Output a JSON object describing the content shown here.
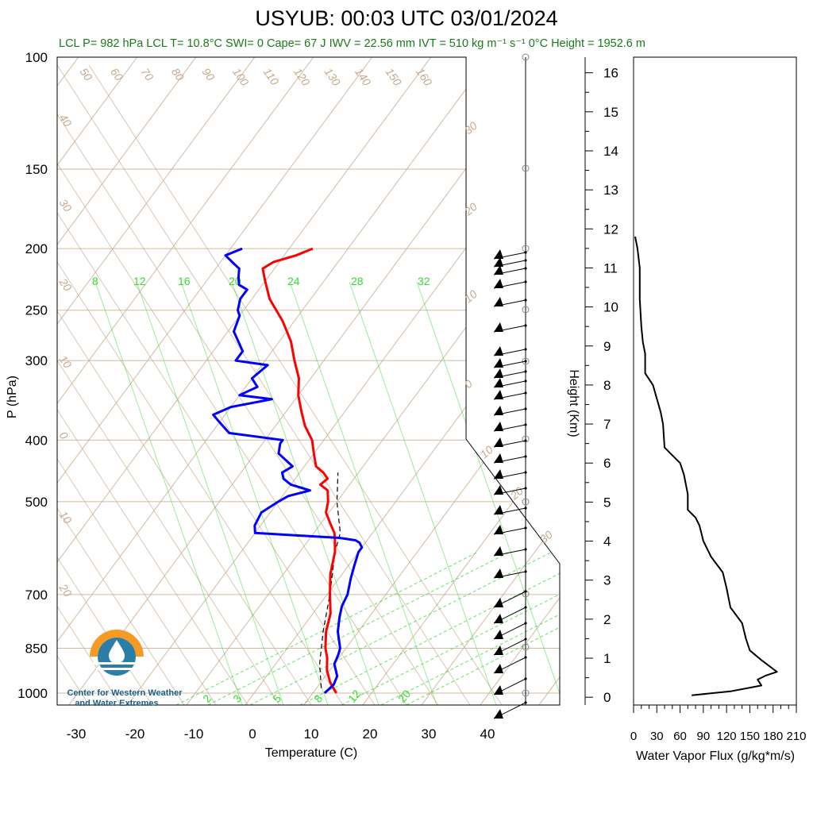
{
  "title": "USYUB: 00:03 UTC 03/01/2024",
  "stats_line": "LCL P= 982 hPa  LCL T= 10.8°C  SWI= 0  Cape= 67 J  IWV = 22.56 mm  IVT = 510 kg m⁻¹ s⁻¹  0°C Height = 1952.6 m",
  "logo": {
    "line1": "Center for Western Weather",
    "line2": "and Water Extremes"
  },
  "colors": {
    "temperature": "#ff0000",
    "dewpoint": "#0000ff",
    "dry_adiabat": "#c8a88a",
    "mixing_ratio": "#33dd33",
    "flux": "#000000",
    "stats_text": "#1a7a1a"
  },
  "chart_data": [
    {
      "type": "line",
      "name": "skew-t",
      "xlabel": "Temperature (C)",
      "ylabel": "P (hPa)",
      "xlim": [
        -34,
        49
      ],
      "ylim": [
        1050,
        100
      ],
      "y_scale": "log",
      "x_ticks": [
        -30,
        -20,
        -10,
        0,
        10,
        20,
        30,
        40
      ],
      "y_ticks": [
        100,
        150,
        200,
        250,
        300,
        400,
        500,
        700,
        850,
        1000
      ],
      "mixing_ratio_labels_upper": [
        "8",
        "12",
        "16",
        "20",
        "24",
        "28",
        "32"
      ],
      "mixing_ratio_labels_lower": [
        "2",
        "3",
        "5",
        "8",
        "12",
        "20"
      ],
      "dry_adiabat_labels": [
        "50",
        "60",
        "70",
        "80",
        "90",
        "100",
        "110",
        "120",
        "130",
        "140",
        "150",
        "160"
      ],
      "isotherm_labels_left": [
        "40",
        "30",
        "20",
        "10",
        "0",
        "10",
        "20"
      ],
      "isotherm_labels_right": [
        "30",
        "20",
        "10",
        "0",
        "10",
        "20",
        "30"
      ],
      "series": [
        {
          "name": "Temperature",
          "p": [
            1000,
            960,
            920,
            880,
            850,
            800,
            750,
            700,
            650,
            600,
            575,
            560,
            540,
            520,
            510,
            500,
            480,
            470,
            460,
            450,
            440,
            420,
            400,
            380,
            360,
            340,
            320,
            300,
            280,
            260,
            240,
            225,
            215,
            210,
            205,
            200
          ],
          "t": [
            14,
            11.5,
            9.5,
            8,
            6.5,
            4.5,
            3,
            0.5,
            -2,
            -4,
            -5.5,
            -6.5,
            -8.5,
            -10.5,
            -11,
            -11.5,
            -13,
            -15,
            -14.5,
            -16,
            -18,
            -20,
            -22,
            -25,
            -27.5,
            -30,
            -32,
            -35,
            -38,
            -42,
            -47,
            -50,
            -52,
            -51,
            -48,
            -46
          ]
        },
        {
          "name": "Dewpoint",
          "p": [
            1000,
            970,
            940,
            900,
            870,
            850,
            800,
            760,
            730,
            700,
            660,
            630,
            600,
            590,
            580,
            575,
            570,
            560,
            545,
            520,
            500,
            490,
            480,
            470,
            460,
            450,
            440,
            420,
            405,
            400,
            390,
            375,
            365,
            355,
            345,
            340,
            330,
            320,
            305,
            300,
            290,
            270,
            255,
            250,
            240,
            232,
            228,
            222,
            215,
            210,
            205,
            200
          ],
          "t": [
            12,
            12.5,
            12,
            10,
            9.5,
            9,
            6.5,
            5,
            4,
            3.5,
            2,
            1,
            0,
            0,
            -1,
            -2,
            -5,
            -20,
            -21,
            -21.5,
            -20,
            -19,
            -16,
            -20,
            -22,
            -23,
            -22,
            -26,
            -27,
            -27,
            -37,
            -40,
            -42,
            -40,
            -34,
            -40,
            -38,
            -40,
            -39,
            -45,
            -45,
            -49,
            -50,
            -51,
            -52,
            -52,
            -54,
            -55,
            -56,
            -58,
            -60,
            -58
          ]
        },
        {
          "name": "Parcel",
          "p": [
            982,
            900,
            800,
            700,
            600,
            560,
            500,
            450
          ],
          "t": [
            10.8,
            7.5,
            4,
            0.5,
            -4,
            -5.5,
            -10,
            -13.5
          ]
        }
      ]
    },
    {
      "type": "line",
      "name": "water-vapor-flux",
      "xlabel": "Water Vapor Flux (g/kg*m/s)",
      "ylabel": "Height (Km)",
      "xlim": [
        0,
        210
      ],
      "ylim": [
        -0.2,
        16.4
      ],
      "x_ticks": [
        0,
        30,
        60,
        90,
        120,
        150,
        180,
        210
      ],
      "y_ticks": [
        0,
        1,
        2,
        3,
        4,
        5,
        6,
        7,
        8,
        9,
        10,
        11,
        12,
        13,
        14,
        15,
        16
      ],
      "x": [
        75,
        125,
        165,
        160,
        170,
        185,
        175,
        165,
        150,
        145,
        140,
        125,
        120,
        115,
        100,
        90,
        85,
        80,
        75,
        70,
        70,
        65,
        60,
        50,
        40,
        38,
        35,
        25,
        15,
        15,
        12,
        10,
        8,
        8,
        5,
        2
      ],
      "y": [
        0.05,
        0.15,
        0.3,
        0.45,
        0.55,
        0.65,
        0.8,
        0.95,
        1.2,
        1.5,
        1.9,
        2.3,
        2.8,
        3.2,
        3.6,
        4,
        4.4,
        4.6,
        4.7,
        4.8,
        5.2,
        5.7,
        6,
        6.2,
        6.4,
        7,
        7.3,
        8,
        8.3,
        8.8,
        9.1,
        9.5,
        10.2,
        11,
        11.5,
        11.8
      ]
    }
  ]
}
